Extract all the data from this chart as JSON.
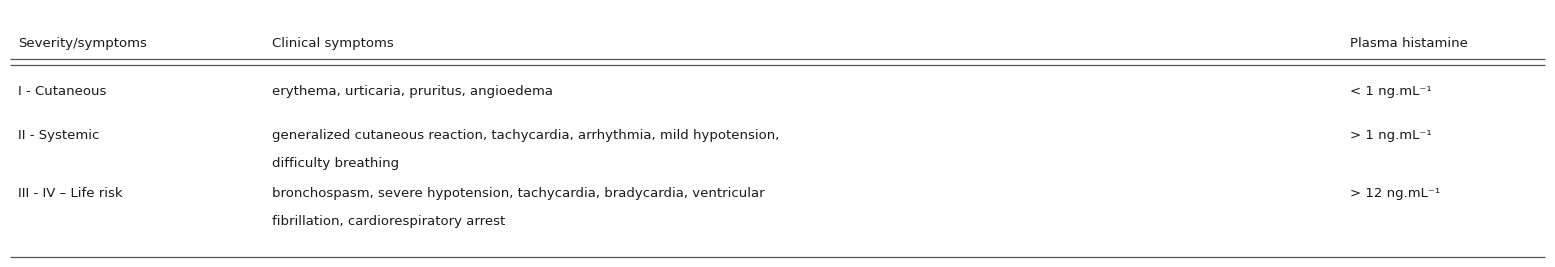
{
  "headers": [
    "Severity/symptoms",
    "Clinical symptoms",
    "Plasma histamine"
  ],
  "rows": [
    {
      "severity": "I - Cutaneous",
      "clinical": "erythema, urticaria, pruritus, angioedema",
      "clinical2": "",
      "plasma": "< 1 ng.mL⁻¹"
    },
    {
      "severity": "II - Systemic",
      "clinical": "generalized cutaneous reaction, tachycardia, arrhythmia, mild hypotension,",
      "clinical2": "difficulty breathing",
      "plasma": "> 1 ng.mL⁻¹"
    },
    {
      "severity": "III - IV – Life risk",
      "clinical": "bronchospasm, severe hypotension, tachycardia, bradycardia, ventricular",
      "clinical2": "fibrillation, cardiorespiratory arrest",
      "plasma": "> 12 ng.mL⁻¹"
    }
  ],
  "background_color": "#ffffff",
  "text_color": "#1a1a1a",
  "line_color": "#555555",
  "font_size": 9.5
}
